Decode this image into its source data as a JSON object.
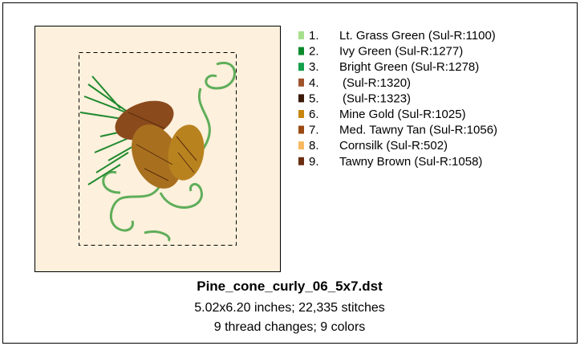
{
  "threads": [
    {
      "number": "1.",
      "name": "Lt. Grass Green (Sul-R:1100)",
      "color": "#a6e08c"
    },
    {
      "number": "2.",
      "name": "Ivy Green (Sul-R:1277)",
      "color": "#0b8a2c"
    },
    {
      "number": "3.",
      "name": "Bright Green (Sul-R:1278)",
      "color": "#14a04c"
    },
    {
      "number": "4.",
      "name": "(Sul-R:1320)",
      "color": "#a0522d"
    },
    {
      "number": "5.",
      "name": "(Sul-R:1323)",
      "color": "#3b1a0a"
    },
    {
      "number": "6.",
      "name": "Mine Gold (Sul-R:1025)",
      "color": "#c8860f"
    },
    {
      "number": "7.",
      "name": "Med. Tawny Tan (Sul-R:1056)",
      "color": "#9a4a12"
    },
    {
      "number": "8.",
      "name": "Cornsilk (Sul-R:502)",
      "color": "#f8b860"
    },
    {
      "number": "9.",
      "name": "Tawny Brown (Sul-R:1058)",
      "color": "#6b2e12"
    }
  ],
  "footer": {
    "filename": "Pine_cone_curly_06_5x7.dst",
    "size_line": "5.02x6.20 inches; 22,335 stitches",
    "thread_line": "9 thread changes; 9 colors"
  }
}
